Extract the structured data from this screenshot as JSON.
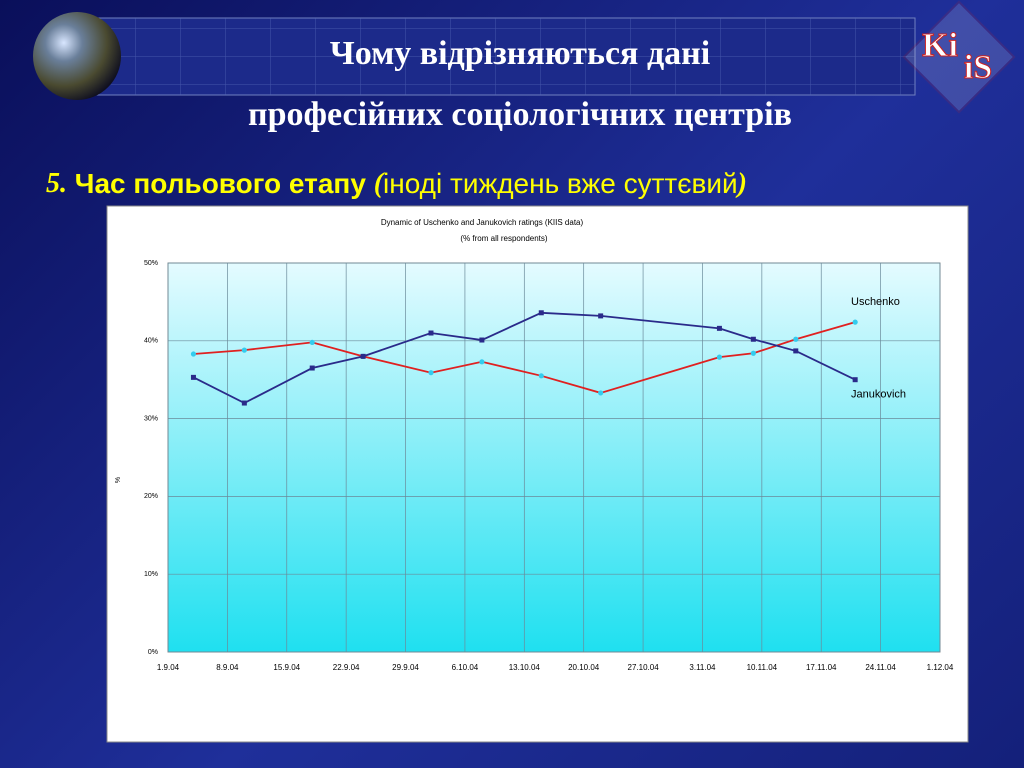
{
  "header": {
    "title_line1": "Чому відрізняються дані",
    "title_line2": "професійних соціологічних центрів",
    "logo_top": "Ki",
    "logo_bottom": "iS"
  },
  "subtitle": {
    "number": "5.",
    "bold": "Час польового етапу",
    "open": "(",
    "note": "іноді тиждень вже суттєвий",
    "close": ")"
  },
  "chart_data": {
    "type": "line",
    "title": "Dynamic of Uschenko and Janukovich ratings (KIIS data)",
    "subtitle": "(% from all respondents)",
    "y_label": "%",
    "x": [
      "2004-09-04",
      "2004-09-10",
      "2004-09-18",
      "2004-09-24",
      "2004-10-02",
      "2004-10-08",
      "2004-10-15",
      "2004-10-22",
      "2004-11-05",
      "2004-11-09",
      "2004-11-14",
      "2004-11-21"
    ],
    "series": [
      {
        "name": "Uschenko",
        "color": "#e02020",
        "marker_color": "#33ccee",
        "values": [
          38.3,
          38.8,
          39.8,
          38.0,
          35.9,
          37.3,
          35.5,
          33.3,
          37.9,
          38.4,
          40.2,
          42.4
        ]
      },
      {
        "name": "Janukovich",
        "color": "#2a2a8a",
        "marker_color": "#2a2a8a",
        "values": [
          35.3,
          32.0,
          36.5,
          38.0,
          41.0,
          40.1,
          43.6,
          43.2,
          41.6,
          40.2,
          38.7,
          35.0
        ]
      }
    ],
    "xlim": [
      "2004-09-01",
      "2004-12-01"
    ],
    "xticks": [
      {
        "value": "2004-09-01",
        "label": "1.9.04"
      },
      {
        "value": "2004-09-08",
        "label": "8.9.04"
      },
      {
        "value": "2004-09-15",
        "label": "15.9.04"
      },
      {
        "value": "2004-09-22",
        "label": "22.9.04"
      },
      {
        "value": "2004-09-29",
        "label": "29.9.04"
      },
      {
        "value": "2004-10-06",
        "label": "6.10.04"
      },
      {
        "value": "2004-10-13",
        "label": "13.10.04"
      },
      {
        "value": "2004-10-20",
        "label": "20.10.04"
      },
      {
        "value": "2004-10-27",
        "label": "27.10.04"
      },
      {
        "value": "2004-11-03",
        "label": "3.11.04"
      },
      {
        "value": "2004-11-10",
        "label": "10.11.04"
      },
      {
        "value": "2004-11-17",
        "label": "17.11.04"
      },
      {
        "value": "2004-11-24",
        "label": "24.11.04"
      },
      {
        "value": "2004-12-01",
        "label": "1.12.04"
      }
    ],
    "ylim": [
      0,
      50
    ],
    "yticks": [
      {
        "value": 0,
        "label": "0%"
      },
      {
        "value": 10,
        "label": "10%"
      },
      {
        "value": 20,
        "label": "20%"
      },
      {
        "value": 30,
        "label": "30%"
      },
      {
        "value": 40,
        "label": "40%"
      },
      {
        "value": 50,
        "label": "50%"
      }
    ],
    "grid": true
  }
}
